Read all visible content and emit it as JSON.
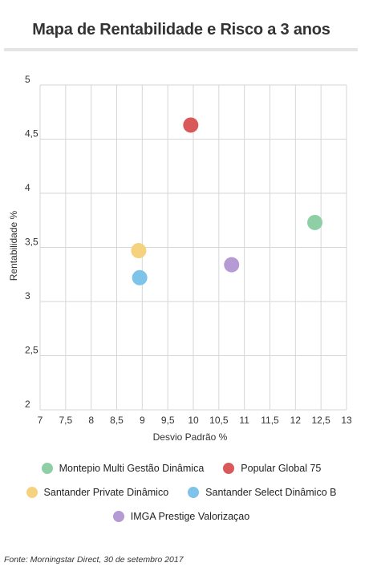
{
  "chart_data": {
    "type": "scatter",
    "title": "Mapa de Rentabilidade e Risco a 3 anos",
    "xlabel": "Desvio Padrão %",
    "ylabel": "Rentabilidade %",
    "xlim": [
      7,
      13
    ],
    "ylim": [
      2,
      5
    ],
    "xticks": [
      7,
      7.5,
      8,
      8.5,
      9,
      9.5,
      10,
      10.5,
      11,
      11.5,
      12,
      12.5,
      13
    ],
    "xtick_labels": [
      "7",
      "7,5",
      "8",
      "8,5",
      "9",
      "9,5",
      "10",
      "10,5",
      "11",
      "11,5",
      "12",
      "12,5",
      "13"
    ],
    "yticks": [
      2,
      2.5,
      3,
      3.5,
      4,
      4.5,
      5
    ],
    "ytick_labels": [
      "2",
      "2,5",
      "3",
      "3,5",
      "4",
      "4,5",
      "5"
    ],
    "grid": true,
    "legend_position": "bottom",
    "series": [
      {
        "name": "Montepio Multi Gestão Dinâmica",
        "color": "#8fcfa6",
        "points": [
          [
            12.38,
            3.73
          ]
        ]
      },
      {
        "name": "Popular Global 75",
        "color": "#d9585a",
        "points": [
          [
            9.95,
            4.63
          ]
        ]
      },
      {
        "name": "Santander Private Dinâmico",
        "color": "#f5d27e",
        "points": [
          [
            8.93,
            3.47
          ]
        ]
      },
      {
        "name": "Santander Select Dinâmico B",
        "color": "#7ec3ea",
        "points": [
          [
            8.95,
            3.22
          ]
        ]
      },
      {
        "name": "IMGA Prestige Valorizaçao",
        "color": "#b69ad3",
        "points": [
          [
            10.75,
            3.34
          ]
        ]
      }
    ]
  },
  "source": "Fonte: Morningstar Direct, 30 de setembro 2017"
}
